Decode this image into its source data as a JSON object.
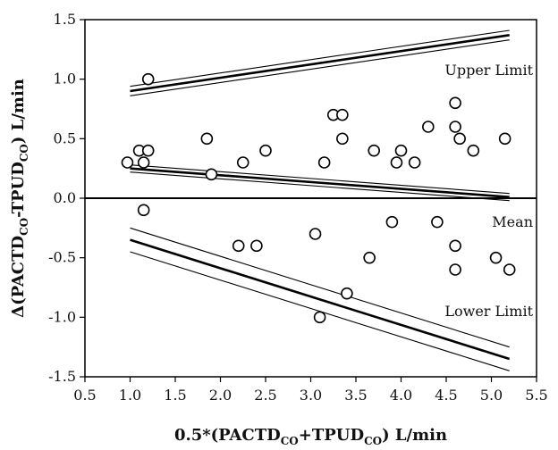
{
  "chart_data": {
    "type": "scatter",
    "xlabel": {
      "pre": "0.5*(PACTD",
      "sub1": "CO",
      "mid": "+TPUD",
      "sub2": "CO",
      "post": ") L/min"
    },
    "ylabel": {
      "pre": "Δ(PACTD",
      "sub1": "CO",
      "mid": "-TPUD",
      "sub2": "CO",
      "post": ") L/min"
    },
    "xlim": [
      0.5,
      5.5
    ],
    "ylim": [
      -1.5,
      1.5
    ],
    "xticks": [
      "0.5",
      "1.0",
      "1.5",
      "2.0",
      "2.5",
      "3.0",
      "3.5",
      "4.0",
      "4.5",
      "5.0",
      "5.5"
    ],
    "yticks": [
      "-1.5",
      "-1.0",
      "-0.5",
      "0.0",
      "0.5",
      "1.0",
      "1.5"
    ],
    "annotations": {
      "upper": "Upper Limit",
      "mean": "Mean",
      "lower": "Lower Limit"
    },
    "zero_line": 0,
    "points": [
      [
        0.97,
        0.3
      ],
      [
        1.1,
        0.4
      ],
      [
        1.15,
        0.3
      ],
      [
        1.2,
        0.4
      ],
      [
        1.2,
        1.0
      ],
      [
        1.15,
        -0.1
      ],
      [
        1.85,
        0.5
      ],
      [
        1.9,
        0.2
      ],
      [
        2.25,
        0.3
      ],
      [
        2.5,
        0.4
      ],
      [
        2.2,
        -0.4
      ],
      [
        2.4,
        -0.4
      ],
      [
        3.05,
        -0.3
      ],
      [
        3.1,
        -1.0
      ],
      [
        3.15,
        0.3
      ],
      [
        3.25,
        0.7
      ],
      [
        3.35,
        0.7
      ],
      [
        3.35,
        0.5
      ],
      [
        3.4,
        -0.8
      ],
      [
        3.65,
        -0.5
      ],
      [
        3.7,
        0.4
      ],
      [
        3.9,
        -0.2
      ],
      [
        3.95,
        0.3
      ],
      [
        4.0,
        0.4
      ],
      [
        4.15,
        0.3
      ],
      [
        4.3,
        0.6
      ],
      [
        4.4,
        -0.2
      ],
      [
        4.6,
        0.8
      ],
      [
        4.6,
        0.6
      ],
      [
        4.65,
        0.5
      ],
      [
        4.6,
        -0.4
      ],
      [
        4.6,
        -0.6
      ],
      [
        4.8,
        0.4
      ],
      [
        5.05,
        -0.5
      ],
      [
        5.15,
        0.5
      ],
      [
        5.2,
        -0.6
      ]
    ],
    "lines": [
      {
        "name": "upper-limit",
        "x": [
          1.0,
          5.2
        ],
        "y": [
          0.9,
          1.37
        ],
        "ci_offset": 0.04
      },
      {
        "name": "mean",
        "x": [
          1.0,
          5.2
        ],
        "y": [
          0.25,
          0.01
        ],
        "ci_offset": 0.03
      },
      {
        "name": "lower-limit",
        "x": [
          1.0,
          5.2
        ],
        "y": [
          -0.35,
          -1.35
        ],
        "ci_offset": 0.1
      }
    ],
    "grid": false
  }
}
